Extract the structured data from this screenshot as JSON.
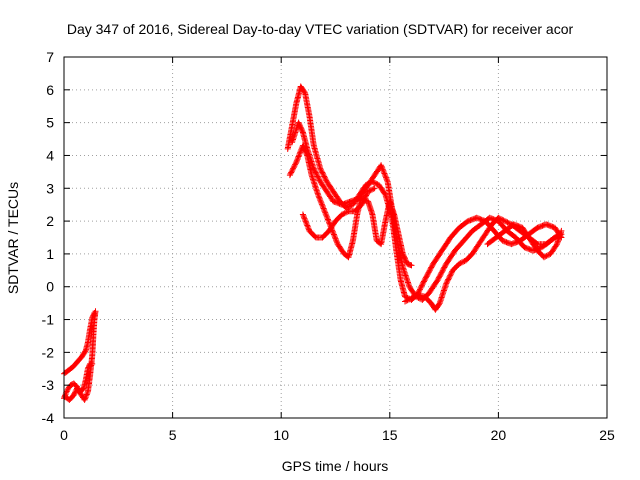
{
  "chart_data": {
    "type": "scatter",
    "title": "Day 347 of 2016, Sidereal Day-to-day VTEC variation (SDTVAR) for receiver acor",
    "xlabel": "GPS time / hours",
    "ylabel": "SDTVAR / TECUs",
    "xlim": [
      0,
      25
    ],
    "ylim": [
      -4,
      7
    ],
    "xticks": [
      0,
      5,
      10,
      15,
      20,
      25
    ],
    "yticks": [
      -4,
      -3,
      -2,
      -1,
      0,
      1,
      2,
      3,
      4,
      5,
      6,
      7
    ],
    "grid": true,
    "legend": "none",
    "marker": "+",
    "series": [
      {
        "color": "#ff0000",
        "segments": [
          [
            [
              0.0,
              -2.65
            ],
            [
              0.2,
              -2.55
            ],
            [
              0.4,
              -2.45
            ],
            [
              0.6,
              -2.3
            ],
            [
              0.8,
              -2.15
            ],
            [
              1.0,
              -1.95
            ],
            [
              1.1,
              -1.7
            ],
            [
              1.2,
              -1.3
            ],
            [
              1.3,
              -0.95
            ],
            [
              1.4,
              -0.8
            ]
          ],
          [
            [
              0.0,
              -3.4
            ],
            [
              0.15,
              -3.15
            ],
            [
              0.3,
              -3.0
            ],
            [
              0.45,
              -2.95
            ],
            [
              0.6,
              -3.05
            ],
            [
              0.75,
              -3.2
            ],
            [
              0.9,
              -3.1
            ],
            [
              1.0,
              -2.85
            ],
            [
              1.1,
              -2.5
            ],
            [
              1.2,
              -2.35
            ],
            [
              1.3,
              -2.35
            ]
          ],
          [
            [
              0.05,
              -3.35
            ],
            [
              0.25,
              -3.45
            ],
            [
              0.45,
              -3.3
            ],
            [
              0.6,
              -3.1
            ],
            [
              0.8,
              -3.3
            ],
            [
              0.95,
              -3.45
            ],
            [
              1.1,
              -3.2
            ],
            [
              1.2,
              -2.7
            ],
            [
              1.3,
              -2.1
            ],
            [
              1.35,
              -1.5
            ],
            [
              1.4,
              -1.0
            ],
            [
              1.45,
              -0.75
            ]
          ],
          [
            [
              10.3,
              4.2
            ],
            [
              10.5,
              4.9
            ],
            [
              10.7,
              5.6
            ],
            [
              10.9,
              6.1
            ],
            [
              11.1,
              5.9
            ],
            [
              11.3,
              5.2
            ],
            [
              11.5,
              4.3
            ],
            [
              11.8,
              3.6
            ],
            [
              12.1,
              3.2
            ],
            [
              12.4,
              2.9
            ],
            [
              12.7,
              2.6
            ],
            [
              13.0,
              2.4
            ],
            [
              13.3,
              2.5
            ],
            [
              13.6,
              2.8
            ],
            [
              13.9,
              3.1
            ],
            [
              14.2,
              3.2
            ],
            [
              14.5,
              3.1
            ],
            [
              14.8,
              2.8
            ],
            [
              15.1,
              2.1
            ],
            [
              15.3,
              1.1
            ],
            [
              15.5,
              0.2
            ],
            [
              15.7,
              -0.3
            ],
            [
              16.0,
              -0.4
            ],
            [
              16.3,
              -0.2
            ],
            [
              16.6,
              0.2
            ],
            [
              17.0,
              0.7
            ],
            [
              17.4,
              1.1
            ],
            [
              17.8,
              1.5
            ],
            [
              18.2,
              1.8
            ],
            [
              18.6,
              2.0
            ],
            [
              19.0,
              2.1
            ],
            [
              19.4,
              2.0
            ],
            [
              19.8,
              1.7
            ],
            [
              20.2,
              1.4
            ],
            [
              20.6,
              1.3
            ],
            [
              21.0,
              1.4
            ],
            [
              21.4,
              1.6
            ],
            [
              21.8,
              1.8
            ],
            [
              22.2,
              1.9
            ],
            [
              22.6,
              1.8
            ],
            [
              22.9,
              1.5
            ]
          ],
          [
            [
              10.4,
              3.4
            ],
            [
              10.7,
              3.8
            ],
            [
              11.0,
              4.3
            ],
            [
              11.2,
              4.0
            ],
            [
              11.4,
              3.4
            ],
            [
              11.7,
              2.8
            ],
            [
              12.0,
              2.3
            ],
            [
              12.3,
              1.8
            ],
            [
              12.6,
              1.3
            ],
            [
              12.9,
              1.0
            ],
            [
              13.1,
              0.9
            ],
            [
              13.3,
              1.4
            ],
            [
              13.5,
              2.2
            ],
            [
              13.7,
              2.8
            ],
            [
              14.0,
              3.1
            ],
            [
              14.3,
              3.4
            ],
            [
              14.6,
              3.7
            ],
            [
              14.9,
              3.2
            ],
            [
              15.1,
              2.4
            ],
            [
              15.3,
              1.5
            ],
            [
              15.6,
              0.6
            ],
            [
              15.9,
              0.0
            ],
            [
              16.2,
              -0.3
            ],
            [
              16.5,
              -0.4
            ],
            [
              16.8,
              -0.2
            ],
            [
              17.2,
              0.2
            ],
            [
              17.6,
              0.7
            ],
            [
              18.0,
              1.1
            ],
            [
              18.4,
              1.4
            ],
            [
              18.8,
              1.7
            ],
            [
              19.2,
              1.9
            ],
            [
              19.6,
              2.1
            ],
            [
              20.0,
              2.0
            ],
            [
              20.4,
              1.7
            ],
            [
              20.8,
              1.5
            ],
            [
              21.2,
              1.2
            ],
            [
              21.6,
              1.1
            ],
            [
              22.0,
              1.2
            ],
            [
              22.4,
              1.4
            ],
            [
              22.8,
              1.6
            ]
          ],
          [
            [
              10.5,
              4.4
            ],
            [
              10.8,
              5.0
            ],
            [
              11.0,
              4.7
            ],
            [
              11.2,
              4.2
            ],
            [
              11.5,
              3.6
            ],
            [
              11.8,
              3.2
            ],
            [
              12.1,
              2.9
            ],
            [
              12.4,
              2.6
            ],
            [
              12.8,
              2.5
            ],
            [
              13.2,
              2.6
            ],
            [
              13.6,
              2.7
            ],
            [
              14.0,
              2.6
            ],
            [
              14.2,
              2.2
            ],
            [
              14.4,
              1.4
            ],
            [
              14.6,
              1.3
            ],
            [
              14.8,
              2.0
            ],
            [
              15.0,
              2.6
            ],
            [
              15.2,
              2.2
            ],
            [
              15.4,
              1.6
            ],
            [
              15.6,
              1.0
            ],
            [
              15.8,
              0.7
            ],
            [
              16.0,
              0.65
            ]
          ],
          [
            [
              15.7,
              -0.45
            ],
            [
              16.0,
              -0.35
            ],
            [
              16.3,
              -0.25
            ],
            [
              16.6,
              -0.3
            ],
            [
              16.9,
              -0.5
            ],
            [
              17.1,
              -0.7
            ],
            [
              17.3,
              -0.5
            ],
            [
              17.6,
              0.1
            ],
            [
              17.9,
              0.5
            ],
            [
              18.2,
              0.7
            ],
            [
              18.5,
              0.8
            ],
            [
              18.8,
              1.0
            ],
            [
              19.1,
              1.3
            ],
            [
              19.4,
              1.6
            ],
            [
              19.7,
              1.9
            ],
            [
              20.0,
              2.1
            ],
            [
              20.3,
              2.0
            ],
            [
              20.6,
              1.9
            ],
            [
              21.0,
              1.7
            ],
            [
              21.4,
              1.5
            ],
            [
              21.8,
              1.3
            ],
            [
              22.2,
              1.3
            ],
            [
              22.6,
              1.5
            ],
            [
              22.9,
              1.6
            ]
          ],
          [
            [
              11.0,
              2.2
            ],
            [
              11.3,
              1.7
            ],
            [
              11.6,
              1.5
            ],
            [
              11.9,
              1.5
            ],
            [
              12.2,
              1.7
            ],
            [
              12.5,
              2.0
            ],
            [
              12.8,
              2.2
            ],
            [
              13.1,
              2.3
            ],
            [
              13.4,
              2.3
            ],
            [
              13.7,
              2.5
            ],
            [
              14.0,
              2.9
            ],
            [
              14.3,
              3.0
            ]
          ],
          [
            [
              19.5,
              1.3
            ],
            [
              19.9,
              1.5
            ],
            [
              20.3,
              1.7
            ],
            [
              20.7,
              1.9
            ],
            [
              21.1,
              1.8
            ],
            [
              21.5,
              1.4
            ],
            [
              21.8,
              1.1
            ],
            [
              22.1,
              0.9
            ],
            [
              22.4,
              1.0
            ],
            [
              22.7,
              1.3
            ],
            [
              22.9,
              1.7
            ]
          ]
        ]
      }
    ]
  }
}
